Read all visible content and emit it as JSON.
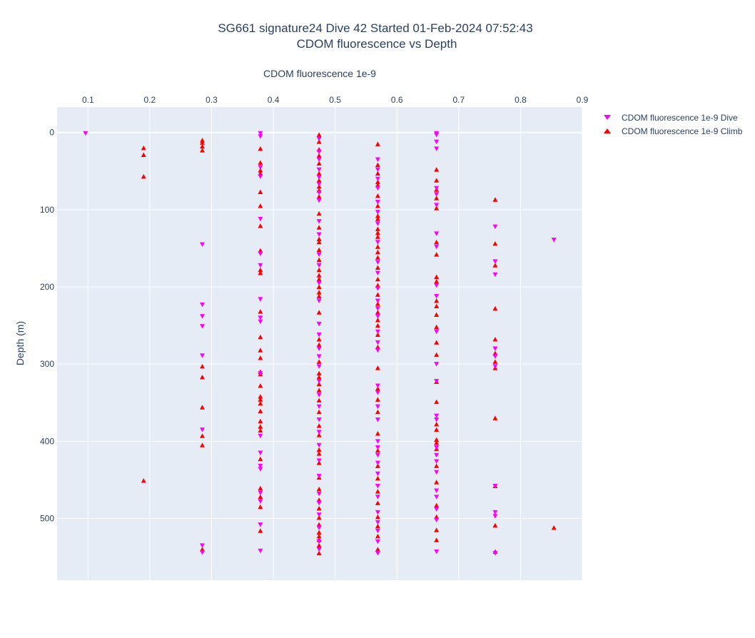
{
  "chart_data": {
    "type": "scatter",
    "title": "SG661 signature24 Dive 42 Started 01-Feb-2024 07:52:43",
    "subtitle": "CDOM fluorescence vs Depth",
    "xlabel": "CDOM fluorescence 1e-9",
    "ylabel": "Depth (m)",
    "x_axis_side": "top",
    "y_reversed": true,
    "xlim": [
      0.05,
      0.9
    ],
    "ylim": [
      -33,
      580
    ],
    "x_ticks": [
      "0.1",
      "0.2",
      "0.3",
      "0.4",
      "0.5",
      "0.6",
      "0.7",
      "0.8",
      "0.9"
    ],
    "y_ticks": [
      "0",
      "100",
      "200",
      "300",
      "400",
      "500"
    ],
    "grid": true,
    "legend_position": "top-right",
    "series": [
      {
        "name": "CDOM fluorescence 1e-9 Dive",
        "marker": "triangle-down",
        "color": "#ff00ff",
        "points": [
          [
            0.096,
            1
          ],
          [
            0.285,
            145
          ],
          [
            0.285,
            223
          ],
          [
            0.285,
            238
          ],
          [
            0.285,
            251
          ],
          [
            0.285,
            289
          ],
          [
            0.285,
            385
          ],
          [
            0.285,
            535
          ],
          [
            0.285,
            544
          ],
          [
            0.379,
            1
          ],
          [
            0.379,
            5
          ],
          [
            0.379,
            45
          ],
          [
            0.379,
            57
          ],
          [
            0.379,
            112
          ],
          [
            0.379,
            157
          ],
          [
            0.379,
            172
          ],
          [
            0.379,
            216
          ],
          [
            0.379,
            240
          ],
          [
            0.379,
            245
          ],
          [
            0.379,
            312
          ],
          [
            0.379,
            393
          ],
          [
            0.379,
            415
          ],
          [
            0.379,
            432
          ],
          [
            0.379,
            436
          ],
          [
            0.379,
            467
          ],
          [
            0.379,
            478
          ],
          [
            0.379,
            508
          ],
          [
            0.379,
            542
          ],
          [
            0.474,
            8
          ],
          [
            0.474,
            25
          ],
          [
            0.474,
            35
          ],
          [
            0.474,
            48
          ],
          [
            0.474,
            58
          ],
          [
            0.474,
            67
          ],
          [
            0.474,
            78
          ],
          [
            0.474,
            88
          ],
          [
            0.474,
            115
          ],
          [
            0.474,
            132
          ],
          [
            0.474,
            158
          ],
          [
            0.474,
            172
          ],
          [
            0.474,
            195
          ],
          [
            0.474,
            218
          ],
          [
            0.474,
            248
          ],
          [
            0.474,
            262
          ],
          [
            0.474,
            280
          ],
          [
            0.474,
            290
          ],
          [
            0.474,
            303
          ],
          [
            0.474,
            322
          ],
          [
            0.474,
            340
          ],
          [
            0.474,
            355
          ],
          [
            0.474,
            372
          ],
          [
            0.474,
            388
          ],
          [
            0.474,
            405
          ],
          [
            0.474,
            425
          ],
          [
            0.474,
            445
          ],
          [
            0.474,
            468
          ],
          [
            0.474,
            480
          ],
          [
            0.474,
            495
          ],
          [
            0.474,
            512
          ],
          [
            0.474,
            530
          ],
          [
            0.474,
            540
          ],
          [
            0.569,
            35
          ],
          [
            0.569,
            48
          ],
          [
            0.569,
            60
          ],
          [
            0.569,
            72
          ],
          [
            0.569,
            90
          ],
          [
            0.569,
            103
          ],
          [
            0.569,
            118
          ],
          [
            0.569,
            142
          ],
          [
            0.569,
            168
          ],
          [
            0.569,
            182
          ],
          [
            0.569,
            202
          ],
          [
            0.569,
            218
          ],
          [
            0.569,
            228
          ],
          [
            0.569,
            238
          ],
          [
            0.569,
            258
          ],
          [
            0.569,
            272
          ],
          [
            0.569,
            282
          ],
          [
            0.569,
            328
          ],
          [
            0.569,
            337
          ],
          [
            0.569,
            355
          ],
          [
            0.569,
            372
          ],
          [
            0.569,
            400
          ],
          [
            0.569,
            408
          ],
          [
            0.569,
            418
          ],
          [
            0.569,
            428
          ],
          [
            0.569,
            442
          ],
          [
            0.569,
            458
          ],
          [
            0.569,
            472
          ],
          [
            0.569,
            492
          ],
          [
            0.569,
            505
          ],
          [
            0.569,
            516
          ],
          [
            0.569,
            530
          ],
          [
            0.569,
            545
          ],
          [
            0.664,
            1
          ],
          [
            0.664,
            3
          ],
          [
            0.664,
            12
          ],
          [
            0.664,
            21
          ],
          [
            0.664,
            72
          ],
          [
            0.664,
            80
          ],
          [
            0.664,
            94
          ],
          [
            0.664,
            131
          ],
          [
            0.664,
            148
          ],
          [
            0.664,
            198
          ],
          [
            0.664,
            212
          ],
          [
            0.664,
            258
          ],
          [
            0.664,
            300
          ],
          [
            0.664,
            322
          ],
          [
            0.664,
            367
          ],
          [
            0.664,
            372
          ],
          [
            0.664,
            408
          ],
          [
            0.664,
            418
          ],
          [
            0.664,
            426
          ],
          [
            0.664,
            440
          ],
          [
            0.664,
            464
          ],
          [
            0.664,
            472
          ],
          [
            0.664,
            488
          ],
          [
            0.664,
            502
          ],
          [
            0.664,
            543
          ],
          [
            0.759,
            122
          ],
          [
            0.759,
            167
          ],
          [
            0.759,
            184
          ],
          [
            0.759,
            280
          ],
          [
            0.759,
            290
          ],
          [
            0.759,
            303
          ],
          [
            0.759,
            458
          ],
          [
            0.759,
            492
          ],
          [
            0.759,
            497
          ],
          [
            0.759,
            545
          ],
          [
            0.854,
            139
          ]
        ]
      },
      {
        "name": "CDOM fluorescence 1e-9 Climb",
        "marker": "triangle-up",
        "color": "#ff0000",
        "points": [
          [
            0.19,
            20
          ],
          [
            0.19,
            29
          ],
          [
            0.19,
            57
          ],
          [
            0.19,
            451
          ],
          [
            0.285,
            10
          ],
          [
            0.285,
            13
          ],
          [
            0.285,
            18
          ],
          [
            0.285,
            23
          ],
          [
            0.285,
            303
          ],
          [
            0.285,
            317
          ],
          [
            0.285,
            356
          ],
          [
            0.285,
            393
          ],
          [
            0.285,
            405
          ],
          [
            0.285,
            540
          ],
          [
            0.379,
            21
          ],
          [
            0.379,
            39
          ],
          [
            0.379,
            49
          ],
          [
            0.379,
            53
          ],
          [
            0.379,
            77
          ],
          [
            0.379,
            95
          ],
          [
            0.379,
            121
          ],
          [
            0.379,
            153
          ],
          [
            0.379,
            178
          ],
          [
            0.379,
            182
          ],
          [
            0.379,
            232
          ],
          [
            0.379,
            265
          ],
          [
            0.379,
            282
          ],
          [
            0.379,
            292
          ],
          [
            0.379,
            310
          ],
          [
            0.379,
            313
          ],
          [
            0.379,
            328
          ],
          [
            0.379,
            342
          ],
          [
            0.379,
            346
          ],
          [
            0.379,
            351
          ],
          [
            0.379,
            361
          ],
          [
            0.379,
            374
          ],
          [
            0.379,
            381
          ],
          [
            0.379,
            386
          ],
          [
            0.379,
            423
          ],
          [
            0.379,
            461
          ],
          [
            0.379,
            472
          ],
          [
            0.379,
            485
          ],
          [
            0.379,
            516
          ],
          [
            0.474,
            3
          ],
          [
            0.474,
            12
          ],
          [
            0.474,
            22
          ],
          [
            0.474,
            30
          ],
          [
            0.474,
            40
          ],
          [
            0.474,
            53
          ],
          [
            0.474,
            62
          ],
          [
            0.474,
            70
          ],
          [
            0.474,
            75
          ],
          [
            0.474,
            83
          ],
          [
            0.474,
            105
          ],
          [
            0.474,
            123
          ],
          [
            0.474,
            138
          ],
          [
            0.474,
            142
          ],
          [
            0.474,
            152
          ],
          [
            0.474,
            165
          ],
          [
            0.474,
            178
          ],
          [
            0.474,
            185
          ],
          [
            0.474,
            190
          ],
          [
            0.474,
            200
          ],
          [
            0.474,
            207
          ],
          [
            0.474,
            212
          ],
          [
            0.474,
            233
          ],
          [
            0.474,
            268
          ],
          [
            0.474,
            275
          ],
          [
            0.474,
            297
          ],
          [
            0.474,
            312
          ],
          [
            0.474,
            317
          ],
          [
            0.474,
            326
          ],
          [
            0.474,
            334
          ],
          [
            0.474,
            347
          ],
          [
            0.474,
            362
          ],
          [
            0.474,
            380
          ],
          [
            0.474,
            392
          ],
          [
            0.474,
            411
          ],
          [
            0.474,
            416
          ],
          [
            0.474,
            428
          ],
          [
            0.474,
            447
          ],
          [
            0.474,
            462
          ],
          [
            0.474,
            476
          ],
          [
            0.474,
            487
          ],
          [
            0.474,
            499
          ],
          [
            0.474,
            508
          ],
          [
            0.474,
            518
          ],
          [
            0.474,
            523
          ],
          [
            0.474,
            528
          ],
          [
            0.474,
            535
          ],
          [
            0.474,
            545
          ],
          [
            0.569,
            15
          ],
          [
            0.569,
            42
          ],
          [
            0.569,
            53
          ],
          [
            0.569,
            64
          ],
          [
            0.569,
            68
          ],
          [
            0.569,
            82
          ],
          [
            0.569,
            95
          ],
          [
            0.569,
            108
          ],
          [
            0.569,
            112
          ],
          [
            0.569,
            125
          ],
          [
            0.569,
            130
          ],
          [
            0.569,
            135
          ],
          [
            0.569,
            148
          ],
          [
            0.569,
            155
          ],
          [
            0.569,
            162
          ],
          [
            0.569,
            175
          ],
          [
            0.569,
            190
          ],
          [
            0.569,
            198
          ],
          [
            0.569,
            210
          ],
          [
            0.569,
            222
          ],
          [
            0.569,
            233
          ],
          [
            0.569,
            243
          ],
          [
            0.569,
            250
          ],
          [
            0.569,
            262
          ],
          [
            0.569,
            278
          ],
          [
            0.569,
            305
          ],
          [
            0.569,
            332
          ],
          [
            0.569,
            346
          ],
          [
            0.569,
            362
          ],
          [
            0.569,
            390
          ],
          [
            0.569,
            412
          ],
          [
            0.569,
            432
          ],
          [
            0.569,
            448
          ],
          [
            0.569,
            465
          ],
          [
            0.569,
            480
          ],
          [
            0.569,
            498
          ],
          [
            0.569,
            510
          ],
          [
            0.569,
            523
          ],
          [
            0.569,
            540
          ],
          [
            0.664,
            48
          ],
          [
            0.664,
            62
          ],
          [
            0.664,
            74
          ],
          [
            0.664,
            85
          ],
          [
            0.664,
            98
          ],
          [
            0.664,
            142
          ],
          [
            0.664,
            158
          ],
          [
            0.664,
            187
          ],
          [
            0.664,
            193
          ],
          [
            0.664,
            218
          ],
          [
            0.664,
            225
          ],
          [
            0.664,
            236
          ],
          [
            0.664,
            252
          ],
          [
            0.664,
            272
          ],
          [
            0.664,
            288
          ],
          [
            0.664,
            323
          ],
          [
            0.664,
            349
          ],
          [
            0.664,
            378
          ],
          [
            0.664,
            385
          ],
          [
            0.664,
            398
          ],
          [
            0.664,
            402
          ],
          [
            0.664,
            410
          ],
          [
            0.664,
            432
          ],
          [
            0.664,
            453
          ],
          [
            0.664,
            483
          ],
          [
            0.664,
            498
          ],
          [
            0.664,
            515
          ],
          [
            0.664,
            528
          ],
          [
            0.759,
            87
          ],
          [
            0.759,
            144
          ],
          [
            0.759,
            172
          ],
          [
            0.759,
            228
          ],
          [
            0.759,
            268
          ],
          [
            0.759,
            286
          ],
          [
            0.759,
            297
          ],
          [
            0.759,
            305
          ],
          [
            0.759,
            370
          ],
          [
            0.759,
            458
          ],
          [
            0.759,
            509
          ],
          [
            0.759,
            543
          ],
          [
            0.854,
            512
          ]
        ]
      }
    ]
  }
}
